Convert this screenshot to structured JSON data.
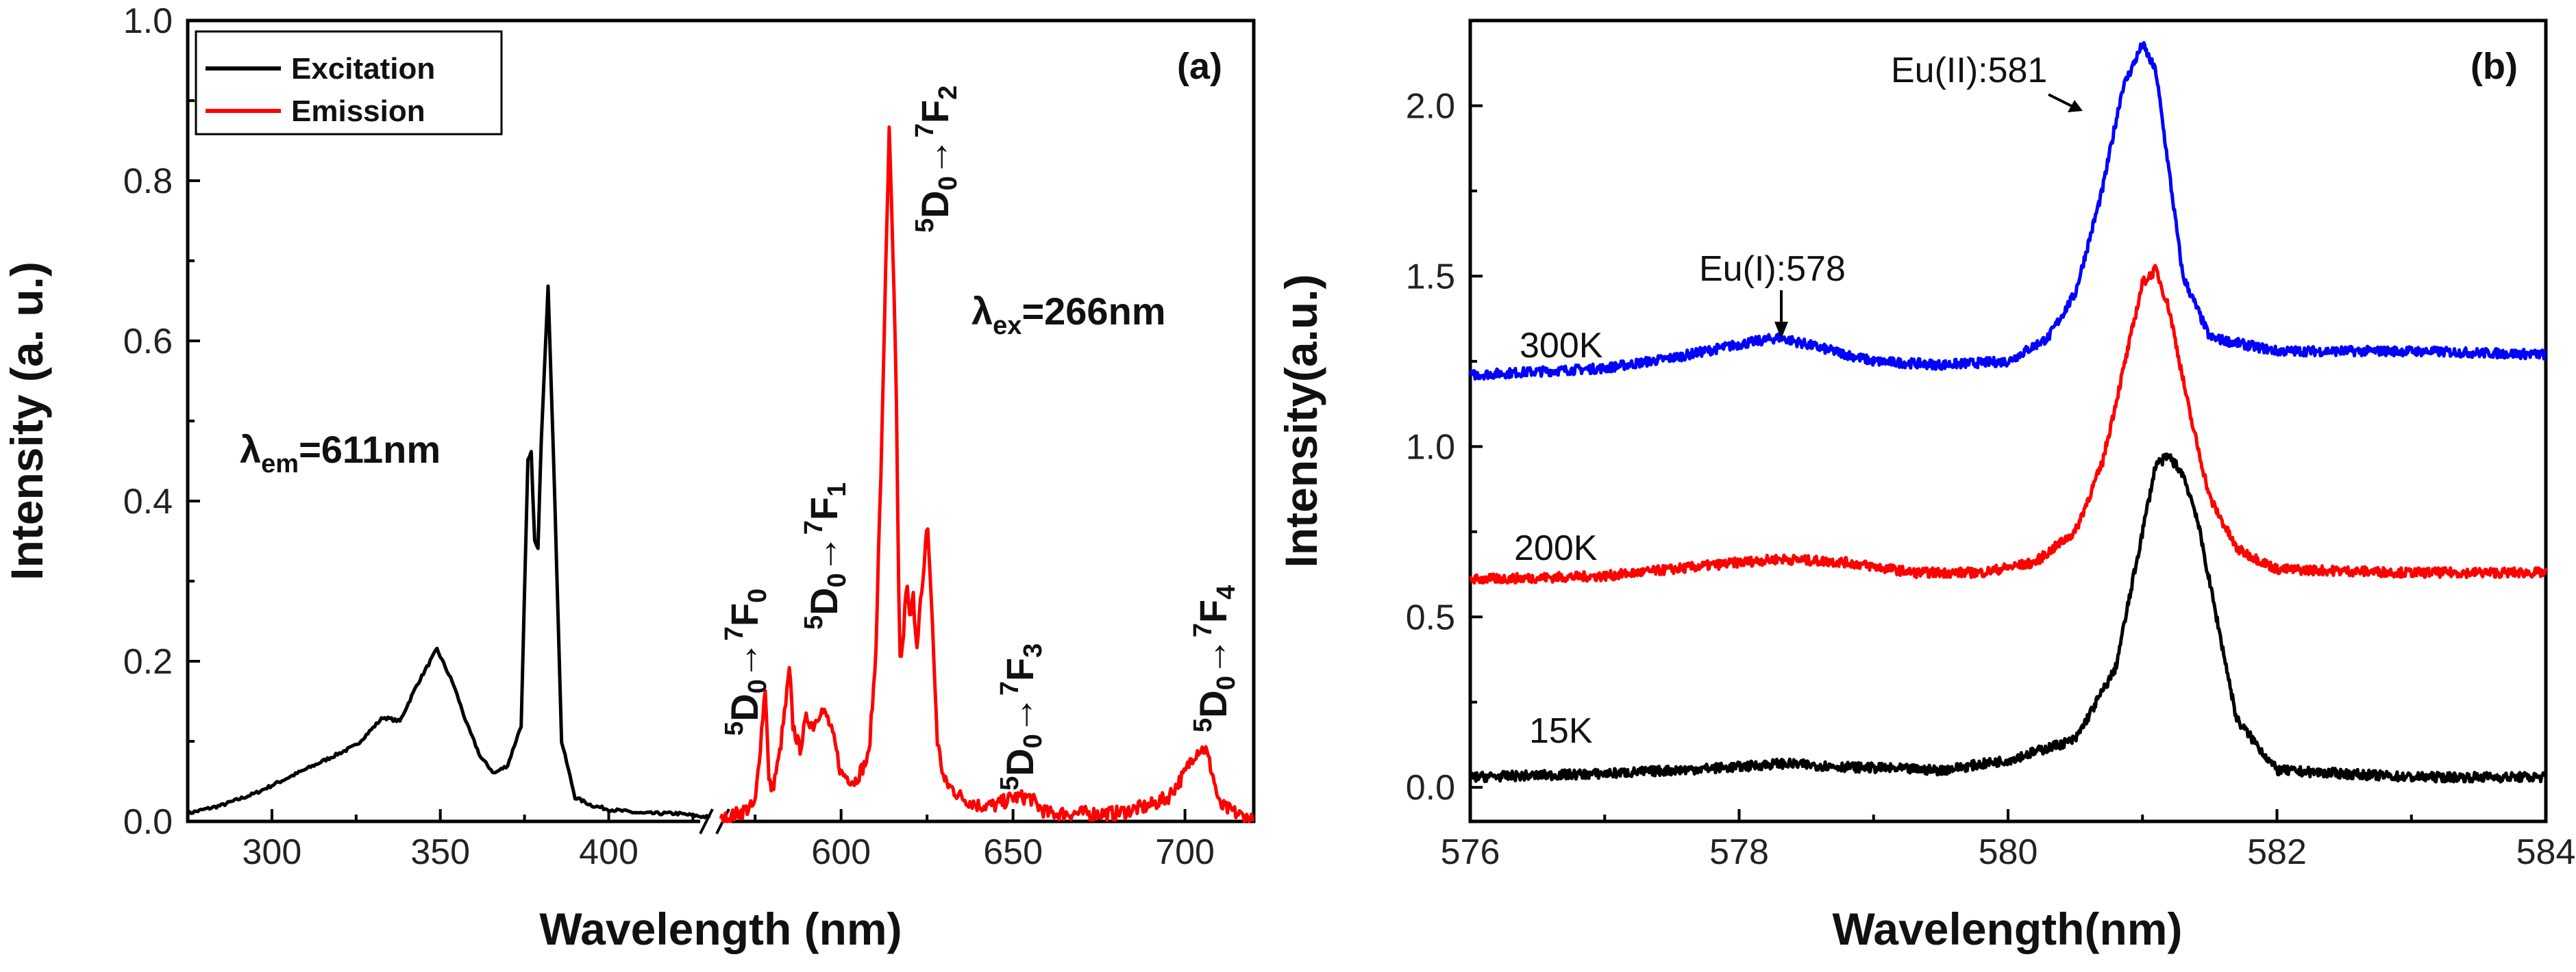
{
  "chart_data": [
    {
      "panel": "(a)",
      "type": "line",
      "xlabel": "Wavelength (nm)",
      "ylabel": "Intensity (a. u.)",
      "ylim": [
        0,
        1.0
      ],
      "y_ticks": [
        "0.0",
        "0.2",
        "0.4",
        "0.6",
        "0.8",
        "1.0"
      ],
      "x_segments": [
        {
          "range": [
            275,
            430
          ],
          "ticks": [
            "300",
            "350",
            "400"
          ]
        },
        {
          "range": [
            565,
            720
          ],
          "ticks": [
            "600",
            "650",
            "700"
          ]
        }
      ],
      "legend": [
        "Excitation",
        "Emission"
      ],
      "colors": {
        "Excitation": "#000000",
        "Emission": "#ff0000"
      },
      "annotations": {
        "lambda_em": "λ",
        "lambda_em_sub": "em",
        "lambda_em_val": "=611nm",
        "lambda_ex": "λ",
        "lambda_ex_sub": "ex",
        "lambda_ex_val": "=266nm",
        "trans_d": "D",
        "trans_f": "F",
        "trans_arrow": "→",
        "sup5": "5",
        "sup7": "7",
        "sub0": "0",
        "f_nums": [
          "0",
          "1",
          "2",
          "3",
          "4"
        ]
      },
      "series": [
        {
          "name": "Excitation",
          "x": [
            275,
            285,
            295,
            305,
            315,
            325,
            333,
            338,
            343,
            349,
            354,
            358,
            362,
            366,
            370,
            374,
            376,
            377,
            378,
            379,
            380,
            382,
            384,
            386,
            390,
            395,
            400,
            410,
            420,
            430
          ],
          "y": [
            0.01,
            0.02,
            0.035,
            0.055,
            0.075,
            0.095,
            0.13,
            0.125,
            0.17,
            0.215,
            0.17,
            0.12,
            0.08,
            0.06,
            0.07,
            0.12,
            0.45,
            0.46,
            0.35,
            0.34,
            0.48,
            0.67,
            0.4,
            0.1,
            0.03,
            0.02,
            0.015,
            0.01,
            0.01,
            0.005
          ]
        },
        {
          "name": "Emission",
          "x": [
            565,
            570,
            575,
            578,
            579,
            580,
            582,
            584,
            585,
            586,
            588,
            590,
            592,
            594,
            596,
            598,
            600,
            604,
            608,
            610,
            612,
            613,
            614,
            615,
            616,
            617,
            618,
            619,
            620,
            621,
            622,
            623,
            624,
            625,
            626,
            627,
            628,
            630,
            635,
            640,
            645,
            650,
            653,
            655,
            657,
            660,
            665,
            670,
            680,
            690,
            695,
            700,
            702,
            704,
            706,
            708,
            710,
            720
          ],
          "y": [
            0.0,
            0.01,
            0.02,
            0.17,
            0.05,
            0.04,
            0.08,
            0.15,
            0.19,
            0.12,
            0.09,
            0.13,
            0.12,
            0.14,
            0.13,
            0.1,
            0.06,
            0.05,
            0.08,
            0.2,
            0.5,
            0.7,
            0.86,
            0.72,
            0.55,
            0.2,
            0.22,
            0.3,
            0.25,
            0.28,
            0.22,
            0.27,
            0.3,
            0.38,
            0.3,
            0.2,
            0.1,
            0.05,
            0.03,
            0.02,
            0.02,
            0.03,
            0.03,
            0.03,
            0.02,
            0.01,
            0.01,
            0.01,
            0.01,
            0.02,
            0.03,
            0.06,
            0.08,
            0.09,
            0.09,
            0.06,
            0.02,
            0.0
          ]
        }
      ]
    },
    {
      "panel": "(b)",
      "type": "line",
      "xlabel": "Wavelength(nm)",
      "ylabel": "Intensity(a.u.)",
      "xlim": [
        576,
        584
      ],
      "ylim": [
        -0.1,
        2.25
      ],
      "x_ticks": [
        "576",
        "578",
        "580",
        "582",
        "584"
      ],
      "y_ticks": [
        "0.0",
        "0.5",
        "1.0",
        "1.5",
        "2.0"
      ],
      "colors": {
        "300K": "#0000ff",
        "200K": "#ff0000",
        "15K": "#000000"
      },
      "annotations": {
        "eu1": "Eu(I):578",
        "eu2": "Eu(II):581"
      },
      "series": [
        {
          "name": "300K",
          "x": [
            576,
            577,
            577.5,
            578,
            578.3,
            578.6,
            579,
            579.5,
            580,
            580.3,
            580.5,
            580.7,
            580.85,
            581,
            581.1,
            581.2,
            581.3,
            581.5,
            582,
            583,
            584
          ],
          "y": [
            1.21,
            1.23,
            1.26,
            1.3,
            1.32,
            1.29,
            1.25,
            1.24,
            1.25,
            1.32,
            1.45,
            1.75,
            2.05,
            2.18,
            2.1,
            1.8,
            1.5,
            1.32,
            1.28,
            1.28,
            1.27
          ]
        },
        {
          "name": "200K",
          "x": [
            576,
            577,
            577.5,
            578,
            578.3,
            578.8,
            579.3,
            579.8,
            580.2,
            580.5,
            580.7,
            580.9,
            581,
            581.1,
            581.2,
            581.35,
            581.5,
            581.7,
            582,
            583,
            584
          ],
          "y": [
            0.61,
            0.62,
            0.64,
            0.66,
            0.67,
            0.66,
            0.63,
            0.63,
            0.66,
            0.75,
            0.95,
            1.3,
            1.48,
            1.52,
            1.4,
            1.1,
            0.85,
            0.7,
            0.64,
            0.63,
            0.63
          ]
        },
        {
          "name": "15K",
          "x": [
            576,
            577,
            577.5,
            578,
            578.3,
            578.8,
            579.5,
            580,
            580.5,
            580.8,
            581,
            581.1,
            581.2,
            581.3,
            581.4,
            581.5,
            581.7,
            582,
            583,
            584
          ],
          "y": [
            0.03,
            0.04,
            0.05,
            0.06,
            0.07,
            0.06,
            0.05,
            0.08,
            0.14,
            0.35,
            0.75,
            0.95,
            0.97,
            0.92,
            0.8,
            0.6,
            0.2,
            0.05,
            0.03,
            0.03
          ]
        }
      ],
      "labels": [
        "300K",
        "200K",
        "15K"
      ]
    }
  ]
}
